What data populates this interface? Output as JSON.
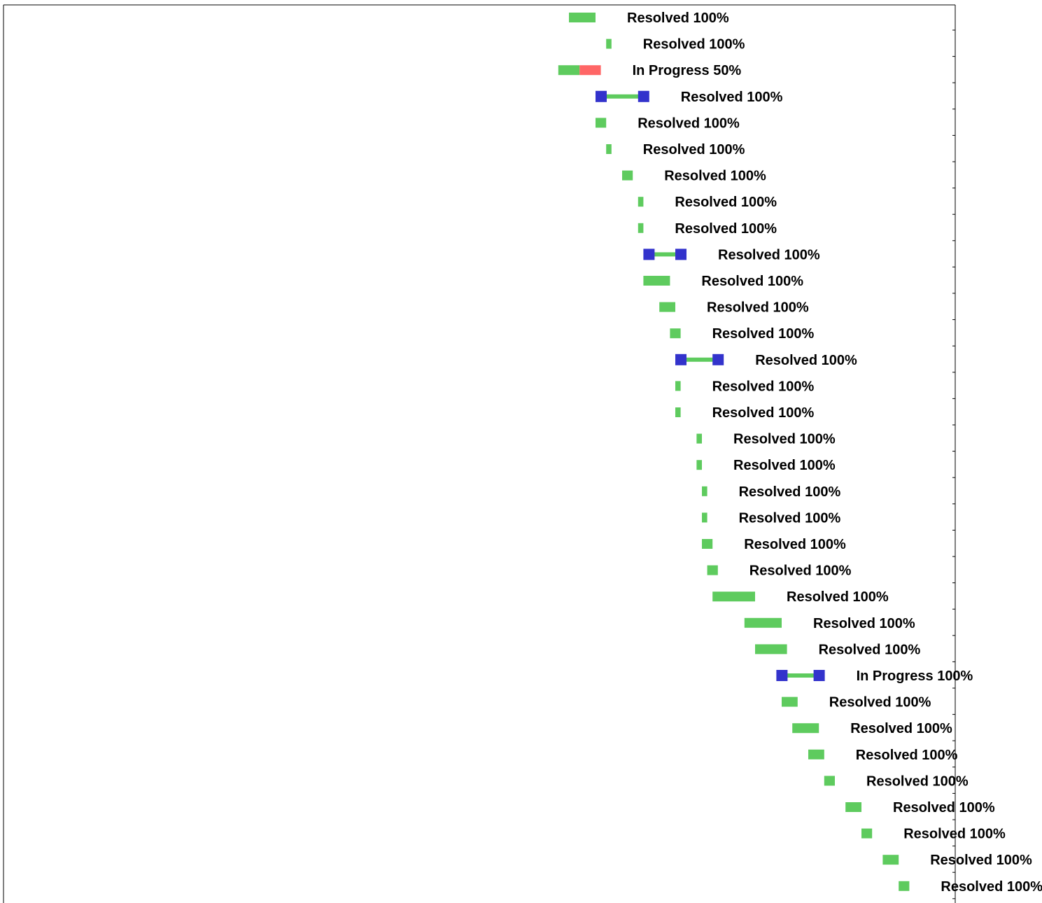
{
  "chart_data": {
    "type": "gantt",
    "title": "",
    "xlabel": "",
    "ylabel": "",
    "grid": false,
    "legend": "none",
    "colors": {
      "completed": "#5ecb5e",
      "remaining": "#ff6666",
      "milestone": "#3333cc",
      "axis": "#000000",
      "label": "#000000"
    },
    "x_range": [
      0,
      176
    ],
    "tasks": [
      {
        "start": 105.0,
        "end": 110.0,
        "kind": "bar",
        "status": "Resolved",
        "progress": 100,
        "label": "Resolved 100%"
      },
      {
        "start": 112.0,
        "end": 113.0,
        "kind": "bar",
        "status": "Resolved",
        "progress": 100,
        "label": "Resolved 100%"
      },
      {
        "start": 103.0,
        "end": 111.0,
        "kind": "bar",
        "status": "In Progress",
        "progress": 50,
        "label": "In Progress 50%"
      },
      {
        "start": 110.0,
        "end": 118.0,
        "kind": "milestone-range",
        "status": "Resolved",
        "progress": 100,
        "label": "Resolved 100%"
      },
      {
        "start": 110.0,
        "end": 112.0,
        "kind": "bar",
        "status": "Resolved",
        "progress": 100,
        "label": "Resolved 100%"
      },
      {
        "start": 112.0,
        "end": 113.0,
        "kind": "bar",
        "status": "Resolved",
        "progress": 100,
        "label": "Resolved 100%"
      },
      {
        "start": 115.0,
        "end": 117.0,
        "kind": "bar",
        "status": "Resolved",
        "progress": 100,
        "label": "Resolved 100%"
      },
      {
        "start": 118.0,
        "end": 119.0,
        "kind": "bar",
        "status": "Resolved",
        "progress": 100,
        "label": "Resolved 100%"
      },
      {
        "start": 118.0,
        "end": 119.0,
        "kind": "bar",
        "status": "Resolved",
        "progress": 100,
        "label": "Resolved 100%"
      },
      {
        "start": 119.0,
        "end": 125.0,
        "kind": "milestone-range",
        "status": "Resolved",
        "progress": 100,
        "label": "Resolved 100%"
      },
      {
        "start": 119.0,
        "end": 124.0,
        "kind": "bar",
        "status": "Resolved",
        "progress": 100,
        "label": "Resolved 100%"
      },
      {
        "start": 122.0,
        "end": 125.0,
        "kind": "bar",
        "status": "Resolved",
        "progress": 100,
        "label": "Resolved 100%"
      },
      {
        "start": 124.0,
        "end": 126.0,
        "kind": "bar",
        "status": "Resolved",
        "progress": 100,
        "label": "Resolved 100%"
      },
      {
        "start": 125.0,
        "end": 132.0,
        "kind": "milestone-range",
        "status": "Resolved",
        "progress": 100,
        "label": "Resolved 100%"
      },
      {
        "start": 125.0,
        "end": 126.0,
        "kind": "bar",
        "status": "Resolved",
        "progress": 100,
        "label": "Resolved 100%"
      },
      {
        "start": 125.0,
        "end": 126.0,
        "kind": "bar",
        "status": "Resolved",
        "progress": 100,
        "label": "Resolved 100%"
      },
      {
        "start": 129.0,
        "end": 130.0,
        "kind": "bar",
        "status": "Resolved",
        "progress": 100,
        "label": "Resolved 100%"
      },
      {
        "start": 129.0,
        "end": 130.0,
        "kind": "bar",
        "status": "Resolved",
        "progress": 100,
        "label": "Resolved 100%"
      },
      {
        "start": 130.0,
        "end": 131.0,
        "kind": "bar",
        "status": "Resolved",
        "progress": 100,
        "label": "Resolved 100%"
      },
      {
        "start": 130.0,
        "end": 131.0,
        "kind": "bar",
        "status": "Resolved",
        "progress": 100,
        "label": "Resolved 100%"
      },
      {
        "start": 130.0,
        "end": 132.0,
        "kind": "bar",
        "status": "Resolved",
        "progress": 100,
        "label": "Resolved 100%"
      },
      {
        "start": 131.0,
        "end": 133.0,
        "kind": "bar",
        "status": "Resolved",
        "progress": 100,
        "label": "Resolved 100%"
      },
      {
        "start": 132.0,
        "end": 140.0,
        "kind": "bar",
        "status": "Resolved",
        "progress": 100,
        "label": "Resolved 100%"
      },
      {
        "start": 138.0,
        "end": 145.0,
        "kind": "bar",
        "status": "Resolved",
        "progress": 100,
        "label": "Resolved 100%"
      },
      {
        "start": 140.0,
        "end": 146.0,
        "kind": "bar",
        "status": "Resolved",
        "progress": 100,
        "label": "Resolved 100%"
      },
      {
        "start": 144.0,
        "end": 151.0,
        "kind": "milestone-range",
        "status": "In Progress",
        "progress": 100,
        "label": "In Progress 100%"
      },
      {
        "start": 145.0,
        "end": 148.0,
        "kind": "bar",
        "status": "Resolved",
        "progress": 100,
        "label": "Resolved 100%"
      },
      {
        "start": 147.0,
        "end": 152.0,
        "kind": "bar",
        "status": "Resolved",
        "progress": 100,
        "label": "Resolved 100%"
      },
      {
        "start": 150.0,
        "end": 153.0,
        "kind": "bar",
        "status": "Resolved",
        "progress": 100,
        "label": "Resolved 100%"
      },
      {
        "start": 153.0,
        "end": 155.0,
        "kind": "bar",
        "status": "Resolved",
        "progress": 100,
        "label": "Resolved 100%"
      },
      {
        "start": 157.0,
        "end": 160.0,
        "kind": "bar",
        "status": "Resolved",
        "progress": 100,
        "label": "Resolved 100%"
      },
      {
        "start": 160.0,
        "end": 162.0,
        "kind": "bar",
        "status": "Resolved",
        "progress": 100,
        "label": "Resolved 100%"
      },
      {
        "start": 164.0,
        "end": 167.0,
        "kind": "bar",
        "status": "Resolved",
        "progress": 100,
        "label": "Resolved 100%"
      },
      {
        "start": 167.0,
        "end": 169.0,
        "kind": "bar",
        "status": "Resolved",
        "progress": 100,
        "label": "Resolved 100%"
      }
    ]
  }
}
